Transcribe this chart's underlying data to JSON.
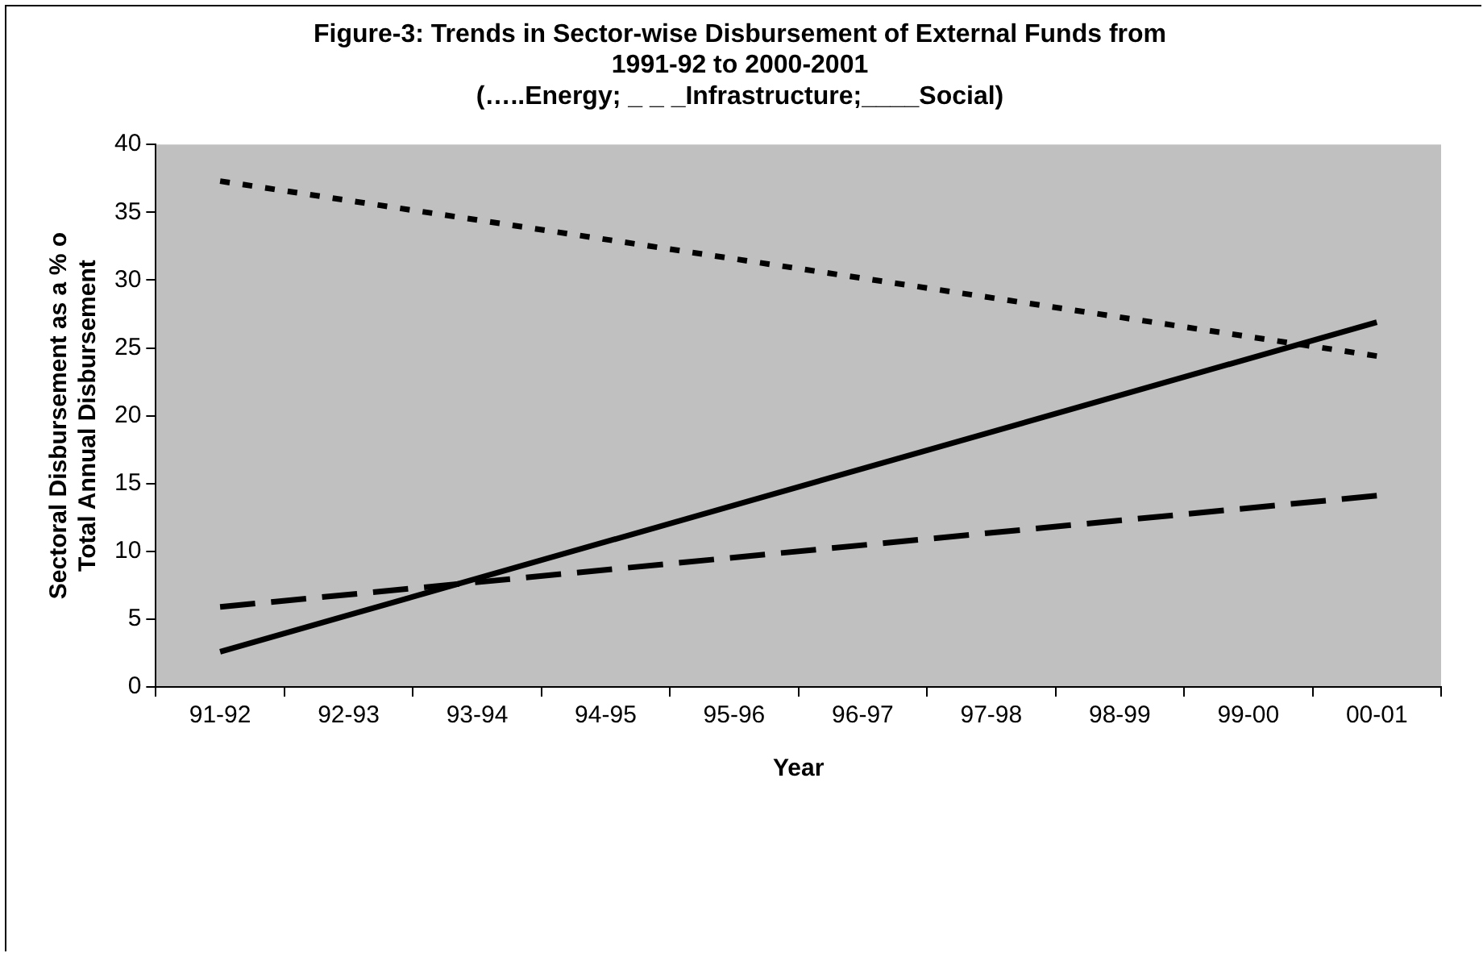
{
  "chart_data": {
    "type": "line",
    "title": [
      "Figure-3: Trends in Sector-wise Disbursement of External Funds from",
      "1991-92 to 2000-2001",
      "(…..Energy; _ _ _Infrastructure;____Social)"
    ],
    "xlabel": "Year",
    "ylabel": [
      "Sectoral Disbursement as a % o",
      "Total Annual Disbursement"
    ],
    "categories": [
      "91-92",
      "92-93",
      "93-94",
      "94-95",
      "95-96",
      "96-97",
      "97-98",
      "98-99",
      "99-00",
      "00-01"
    ],
    "series": [
      {
        "color": "#000000",
        "line_style": "dotted",
        "values": [
          37.3,
          null,
          null,
          null,
          null,
          null,
          null,
          null,
          null,
          24.4
        ]
      },
      {
        "color": "#000000",
        "line_style": "dashed",
        "values": [
          5.9,
          null,
          null,
          null,
          null,
          null,
          null,
          null,
          null,
          14.1
        ]
      },
      {
        "color": "#000000",
        "line_style": "solid",
        "values": [
          2.6,
          null,
          null,
          null,
          null,
          null,
          null,
          null,
          null,
          26.9
        ]
      }
    ],
    "ylim": [
      0,
      40
    ],
    "yticks": [
      0,
      5,
      10,
      15,
      20,
      25,
      30,
      35,
      40
    ],
    "grid": false,
    "legend": false,
    "marker": "none"
  }
}
